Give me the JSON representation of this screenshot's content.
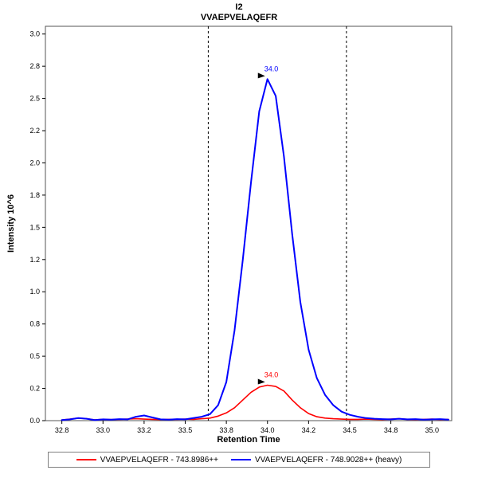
{
  "chart_data": {
    "type": "line",
    "title": "I2",
    "subtitle": "VVAEPVELAQEFR",
    "xlabel": "Retention Time",
    "ylabel": "Intensity 10^6",
    "xlim": [
      32.65,
      35.12
    ],
    "ylim": [
      0,
      3.06
    ],
    "grid": false,
    "legend_position": "bottom",
    "x_ticks": {
      "values": [
        32.75,
        33.0,
        33.25,
        33.5,
        33.75,
        34.0,
        34.25,
        34.5,
        34.75,
        35.0
      ],
      "labels": [
        "32.8",
        "33.0",
        "33.2",
        "33.5",
        "33.8",
        "34.0",
        "34.2",
        "34.5",
        "34.8",
        "35.0"
      ]
    },
    "y_ticks": {
      "values": [
        0,
        0.25,
        0.5,
        0.75,
        1.0,
        1.25,
        1.5,
        1.75,
        2.0,
        2.25,
        2.5,
        2.75,
        3.0
      ],
      "labels": [
        "0.0",
        "0.2",
        "0.5",
        "0.8",
        "1.0",
        "1.2",
        "1.5",
        "1.8",
        "2.0",
        "2.2",
        "2.5",
        "2.8",
        "3.0"
      ]
    },
    "peak_boundaries": [
      33.64,
      34.48
    ],
    "series": [
      {
        "name": "VVAEPVELAQEFR - 743.8986++",
        "color": "#ff0000",
        "width": 1.6,
        "x_start": 32.75,
        "x_step": 0.05,
        "y": [
          0.005,
          0.012,
          0.02,
          0.015,
          0.006,
          0.01,
          0.008,
          0.01,
          0.012,
          0.015,
          0.012,
          0.01,
          0.008,
          0.01,
          0.01,
          0.012,
          0.01,
          0.015,
          0.02,
          0.035,
          0.06,
          0.1,
          0.16,
          0.22,
          0.26,
          0.275,
          0.265,
          0.23,
          0.16,
          0.1,
          0.055,
          0.03,
          0.02,
          0.015,
          0.012,
          0.01,
          0.01,
          0.012,
          0.01,
          0.008,
          0.012,
          0.015,
          0.01,
          0.008,
          0.01,
          0.012,
          0.008,
          0.01
        ],
        "peak_annotation": {
          "label": "34.0",
          "x": 34.0,
          "y": 0.275
        }
      },
      {
        "name": "VVAEPVELAQEFR - 748.9028++ (heavy)",
        "color": "#0000ff",
        "width": 2,
        "x_start": 32.75,
        "x_step": 0.05,
        "y": [
          0.005,
          0.01,
          0.02,
          0.015,
          0.005,
          0.01,
          0.008,
          0.012,
          0.01,
          0.03,
          0.04,
          0.025,
          0.01,
          0.008,
          0.012,
          0.01,
          0.02,
          0.03,
          0.05,
          0.12,
          0.3,
          0.7,
          1.25,
          1.85,
          2.4,
          2.65,
          2.52,
          2.05,
          1.45,
          0.92,
          0.55,
          0.33,
          0.2,
          0.12,
          0.07,
          0.045,
          0.03,
          0.02,
          0.015,
          0.012,
          0.01,
          0.015,
          0.01,
          0.012,
          0.008,
          0.01,
          0.012,
          0.008
        ],
        "peak_annotation": {
          "label": "34.0",
          "x": 34.0,
          "y": 2.65
        }
      }
    ]
  }
}
